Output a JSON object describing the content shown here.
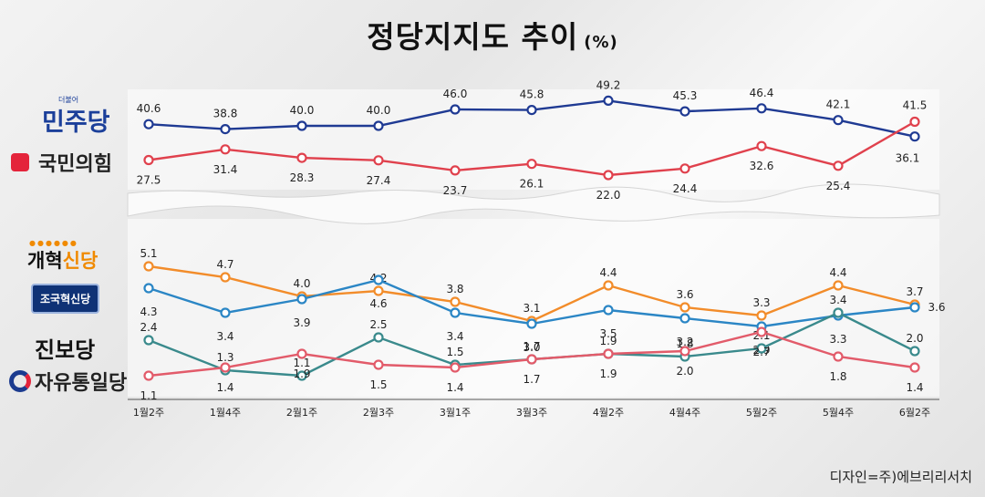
{
  "title": "정당지지도 추이",
  "title_unit": "(%)",
  "credit": "디자인=주)에브리리서치",
  "party_labels": {
    "minju": "민주당",
    "minju_mark": "더불어",
    "ppp": "국민의힘",
    "reform_a": "개혁",
    "reform_b": "신당",
    "cho": "조국혁신당",
    "jinbo": "진보당",
    "liberty": "자유통일당"
  },
  "chart_data": [
    {
      "type": "line",
      "x": [
        "1월2주",
        "1월4주",
        "2월1주",
        "2월3주",
        "3월1주",
        "3월3주",
        "4월2주",
        "4월4주",
        "5월2주",
        "5월4주",
        "6월2주"
      ],
      "series": [
        {
          "name": "민주당",
          "color": "#1f3a93",
          "values": [
            40.6,
            38.8,
            40.0,
            40.0,
            46.0,
            45.8,
            49.2,
            45.3,
            46.4,
            42.1,
            36.1
          ]
        },
        {
          "name": "국민의힘",
          "color": "#e0414d",
          "values": [
            27.5,
            31.4,
            28.3,
            27.4,
            23.7,
            26.1,
            22.0,
            24.4,
            32.6,
            25.4,
            41.5
          ]
        }
      ]
    },
    {
      "type": "line",
      "x": [
        "1월2주",
        "1월4주",
        "2월1주",
        "2월3주",
        "3월1주",
        "3월3주",
        "4월2주",
        "4월4주",
        "5월2주",
        "5월4주",
        "6월2주"
      ],
      "series": [
        {
          "name": "개혁신당",
          "color": "#f28c2a",
          "values": [
            5.1,
            4.7,
            4.0,
            4.2,
            3.8,
            3.1,
            4.4,
            3.6,
            3.3,
            4.4,
            3.7
          ]
        },
        {
          "name": "조국혁신당",
          "color": "#2b86c5",
          "values": [
            4.3,
            3.4,
            3.9,
            4.6,
            3.4,
            3.0,
            3.5,
            3.2,
            2.9,
            3.3,
            3.6
          ]
        },
        {
          "name": "진보당",
          "color": "#3a8a8c",
          "values": [
            2.4,
            1.3,
            1.1,
            2.5,
            1.5,
            1.7,
            1.9,
            1.8,
            2.1,
            3.4,
            2.0
          ]
        },
        {
          "name": "자유통일당",
          "color": "#e25b6a",
          "values": [
            1.1,
            1.4,
            1.9,
            1.5,
            1.4,
            1.7,
            1.9,
            2.0,
            2.7,
            1.8,
            1.4
          ]
        }
      ]
    }
  ]
}
